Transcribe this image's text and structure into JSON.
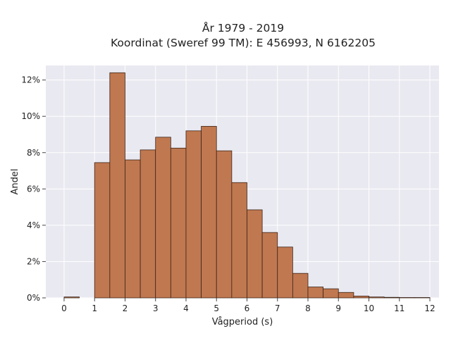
{
  "chart_data": {
    "type": "bar",
    "title": "År 1979 - 2019",
    "subtitle": "Koordinat (Sweref 99 TM): E 456993, N 6162205",
    "xlabel": "Vågperiod (s)",
    "ylabel": "Andel",
    "bin_width": 0.5,
    "bin_starts": [
      0,
      1,
      1.5,
      2,
      2.5,
      3,
      3.5,
      4,
      4.5,
      5,
      5.5,
      6,
      6.5,
      7,
      7.5,
      8,
      8.5,
      9,
      9.5,
      10,
      10.5,
      11,
      11.5
    ],
    "values": [
      0.05,
      7.45,
      12.4,
      7.6,
      8.15,
      8.85,
      8.25,
      9.2,
      9.45,
      8.1,
      6.35,
      4.85,
      3.6,
      2.8,
      1.35,
      0.6,
      0.5,
      0.3,
      0.1,
      0.05,
      0.03,
      0.02,
      0.02
    ],
    "xlim": [
      -0.6,
      12.3
    ],
    "ylim": [
      0,
      12.8
    ],
    "x_ticks": [
      "0",
      "1",
      "2",
      "3",
      "4",
      "5",
      "6",
      "7",
      "8",
      "9",
      "10",
      "11",
      "12"
    ],
    "y_ticks": [
      "0%",
      "2%",
      "4%",
      "6%",
      "8%",
      "10%",
      "12%"
    ],
    "y_tick_values": [
      0,
      2,
      4,
      6,
      8,
      10,
      12
    ],
    "grid": true,
    "colors": {
      "bar_fill": "#c07850",
      "bar_edge": "#3c2418",
      "plot_background": "#e9e9f1",
      "grid": "#ffffff"
    }
  }
}
